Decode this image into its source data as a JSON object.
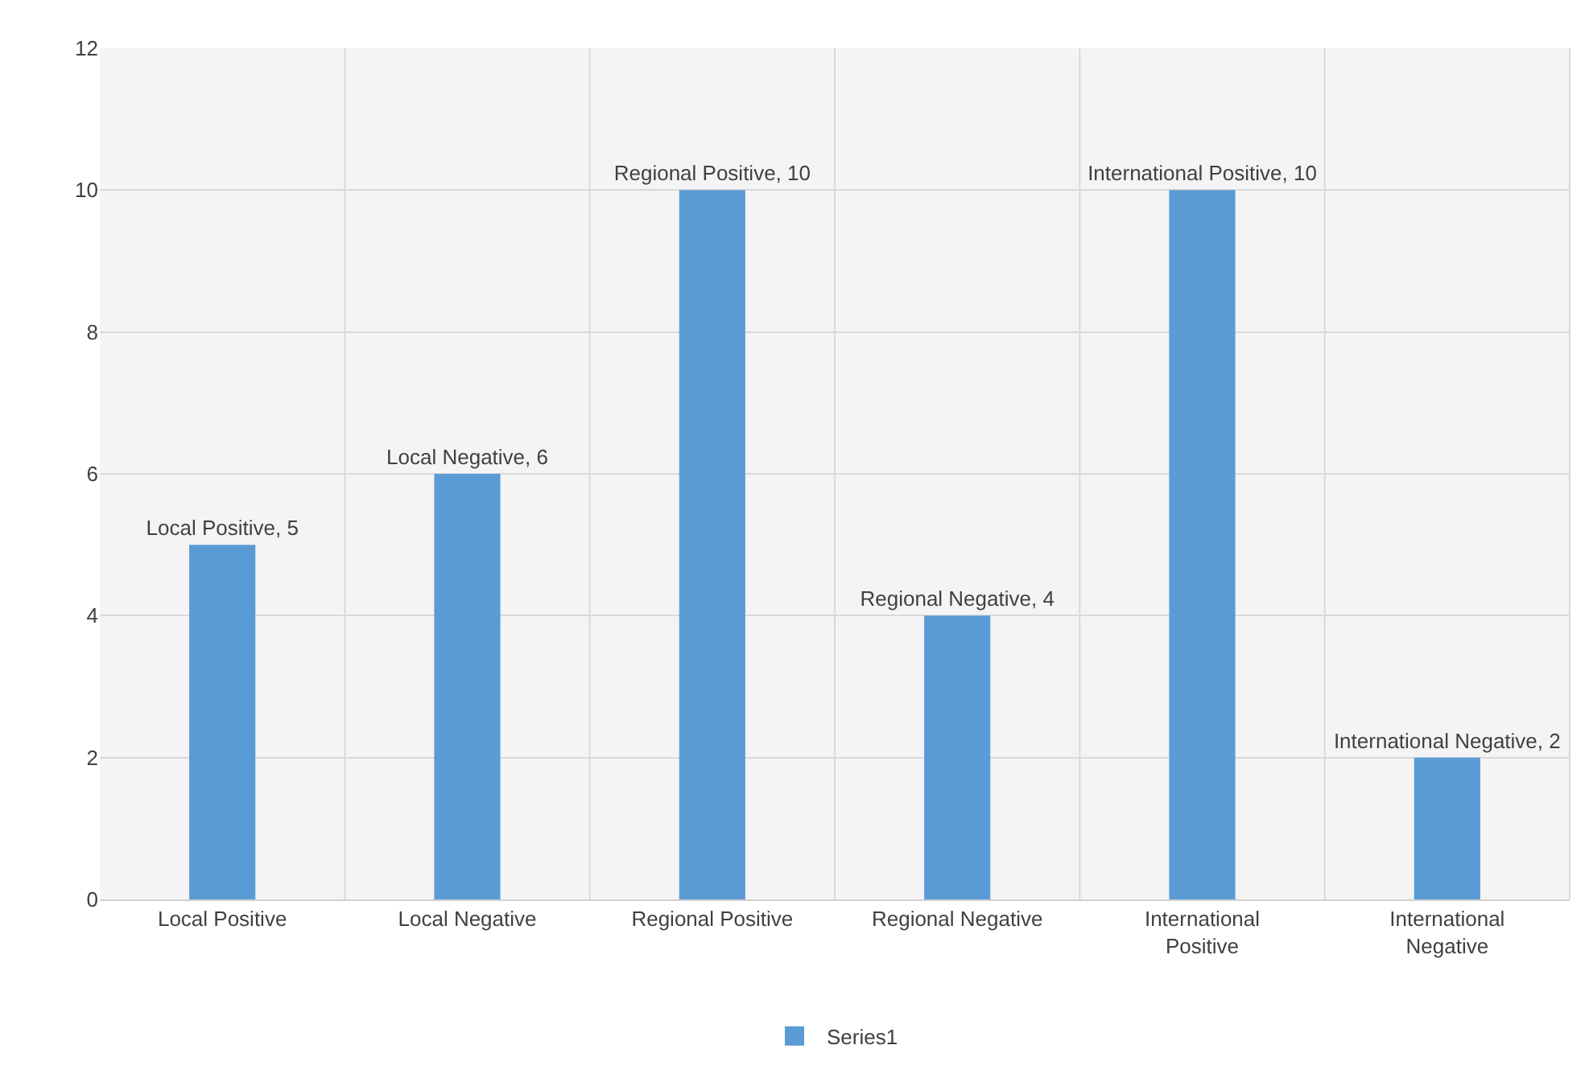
{
  "chart_data": {
    "type": "bar",
    "categories": [
      "Local Positive",
      "Local Negative",
      "Regional Positive",
      "Regional Negative",
      "International Positive",
      "International Negative"
    ],
    "series": [
      {
        "name": "Series1",
        "color": "#5b9bd5",
        "values": [
          5,
          6,
          10,
          4,
          10,
          2
        ],
        "value_labels": [
          "Local Positive, 5",
          "Local Negative, 6",
          "Regional Positive, 10",
          "Regional Negative, 4",
          "International Positive, 10",
          "International Negative, 2"
        ]
      }
    ],
    "ylim": [
      0,
      12
    ],
    "yticks": [
      0,
      2,
      4,
      6,
      8,
      10,
      12
    ],
    "grid": true,
    "legend": "bottom"
  }
}
